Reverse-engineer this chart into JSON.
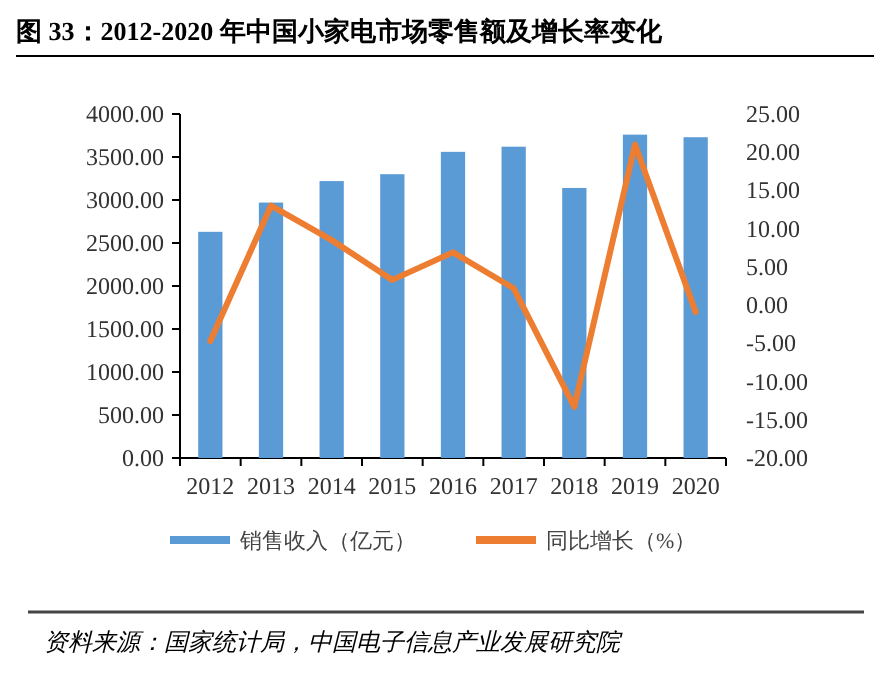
{
  "chart_data": {
    "type": "bar",
    "title": "图 33：2012-2020 年中国小家电市场零售额及增长率变化",
    "categories": [
      "2012",
      "2013",
      "2014",
      "2015",
      "2016",
      "2017",
      "2018",
      "2019",
      "2020"
    ],
    "series": [
      {
        "name": "销售收入（亿元）",
        "color": "#5b9bd5",
        "values": [
          2630,
          2970,
          3220,
          3300,
          3560,
          3620,
          3140,
          3760,
          3730
        ]
      },
      {
        "name": "同比增长（%）",
        "type": "line",
        "axis": "y2",
        "color": "#ed7d31",
        "values": [
          -4.7,
          13.0,
          8.5,
          3.3,
          6.9,
          2.2,
          -13.3,
          21.0,
          -0.9
        ]
      }
    ],
    "ylim": [
      0,
      4000
    ],
    "yticks": [
      {
        "value": 0,
        "label": "0.00"
      },
      {
        "value": 500,
        "label": "500.00"
      },
      {
        "value": 1000,
        "label": "1000.00"
      },
      {
        "value": 1500,
        "label": "1500.00"
      },
      {
        "value": 2000,
        "label": "2000.00"
      },
      {
        "value": 2500,
        "label": "2500.00"
      },
      {
        "value": 3000,
        "label": "3000.00"
      },
      {
        "value": 3500,
        "label": "3500.00"
      },
      {
        "value": 4000,
        "label": "4000.00"
      }
    ],
    "y2lim": [
      -20,
      25
    ],
    "y2ticks": [
      {
        "value": -20,
        "label": "-20.00"
      },
      {
        "value": -15,
        "label": "-15.00"
      },
      {
        "value": -10,
        "label": "-10.00"
      },
      {
        "value": -5,
        "label": "-5.00"
      },
      {
        "value": 0,
        "label": "0.00"
      },
      {
        "value": 5,
        "label": "5.00"
      },
      {
        "value": 10,
        "label": "10.00"
      },
      {
        "value": 15,
        "label": "15.00"
      },
      {
        "value": 20,
        "label": "20.00"
      },
      {
        "value": 25,
        "label": "25.00"
      }
    ],
    "legend": "bottom",
    "grid": false,
    "annotations": [
      "资料来源：国家统计局，中国电子信息产业发展研究院"
    ]
  }
}
